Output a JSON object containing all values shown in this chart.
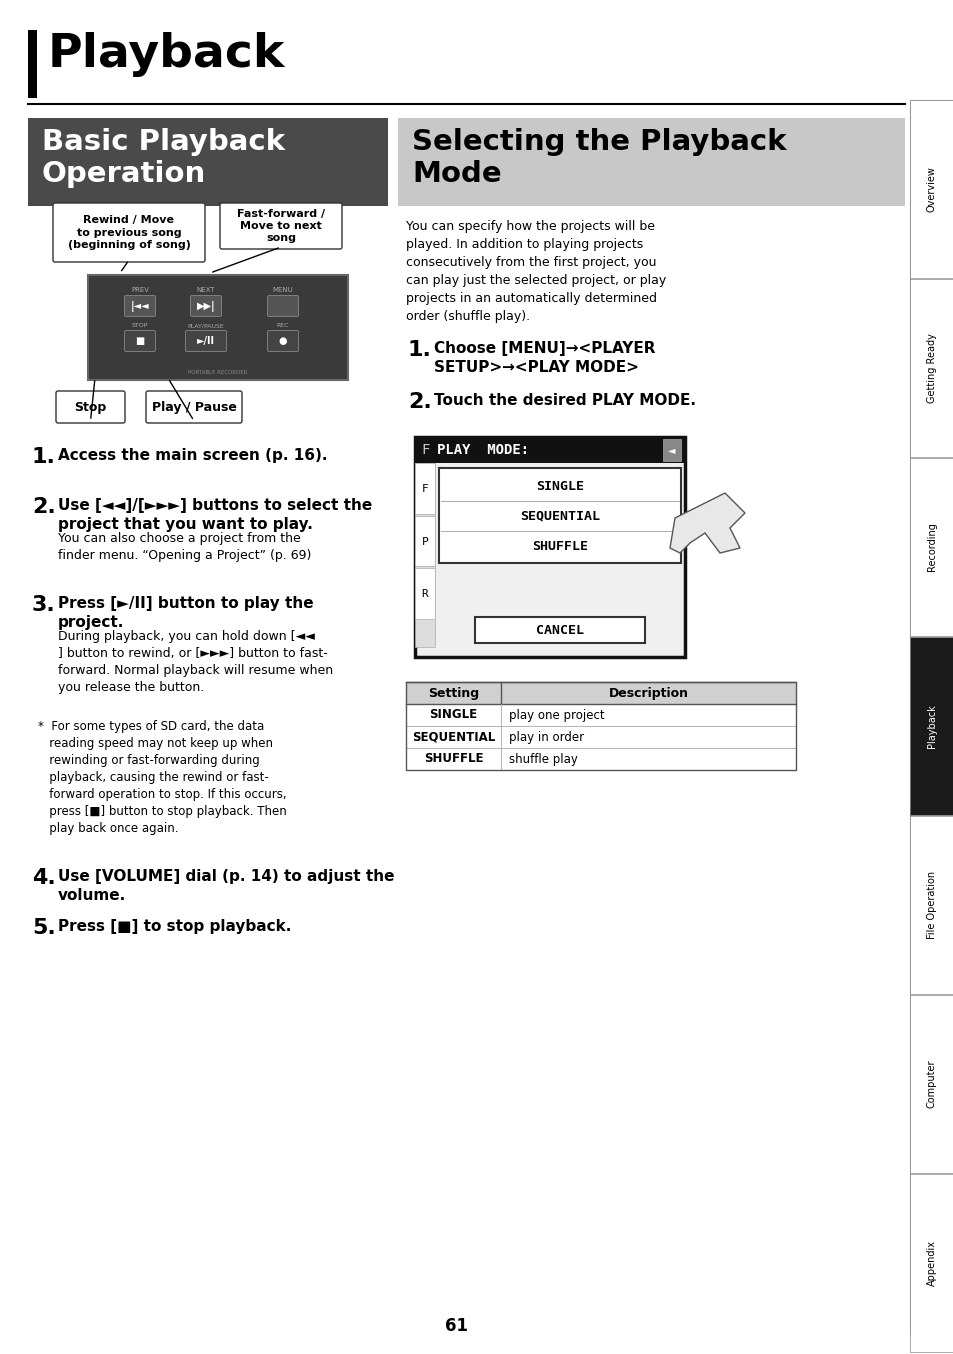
{
  "page_title": "Playback",
  "section1_title": "Basic Playback\nOperation",
  "section2_title": "Selecting the Playback\nMode",
  "section1_bg": "#4a4a4a",
  "section2_bg": "#c8c8c8",
  "body_bg": "#ffffff",
  "tab_labels": [
    "Overview",
    "Getting Ready",
    "Recording",
    "Playback",
    "File Operation",
    "Computer",
    "Appendix"
  ],
  "active_tab_idx": 3,
  "tab_bg_active": "#1a1a1a",
  "tab_bg_inactive": "#ffffff",
  "page_number": "61",
  "callout1_text": "Rewind / Move\nto previous song\n(beginning of song)",
  "callout2_text": "Fast-forward /\nMove to next\nsong",
  "callout3_text": "Stop",
  "callout4_text": "Play / Pause",
  "step1_num": "1.",
  "step1_text": "Access the main screen (p. 16).",
  "step2_num": "2.",
  "step2_text_bold": "Use [◄◄]/[►►►] buttons to select the\nproject that you want to play.",
  "step2_sub": "You can also choose a project from the\nfinder menu. “Opening a Project” (p. 69)",
  "step3_num": "3.",
  "step3_text_bold": "Press [►/II] button to play the\nproject.",
  "step3_sub": "During playback, you can hold down [◄◄\n] button to rewind, or [►►►] button to fast-\nforward. Normal playback will resume when\nyou release the button.",
  "note_text": "*  For some types of SD card, the data\n   reading speed may not keep up when\n   rewinding or fast-forwarding during\n   playback, causing the rewind or fast-\n   forward operation to stop. If this occurs,\n   press [■] button to stop playback. Then\n   play back once again.",
  "step4_num": "4.",
  "step4_text_bold": "Use [VOLUME] dial (p. 14) to adjust the\nvolume.",
  "step5_num": "5.",
  "step5_text_bold": "Press [■] to stop playback.",
  "right_intro": "You can specify how the projects will be\nplayed. In addition to playing projects\nconsecutively from the first project, you\ncan play just the selected project, or play\nprojects in an automatically determined\norder (shuffle play).",
  "right_step1_num": "1.",
  "right_step1_text": "Choose [MENU]→<PLAYER\nSETUP>→<PLAY MODE>",
  "right_step2_num": "2.",
  "right_step2_text": "Touch the desired PLAY MODE.",
  "table_headers": [
    "Setting",
    "Description"
  ],
  "table_rows": [
    [
      "SINGLE",
      "play one project"
    ],
    [
      "SEQUENTIAL",
      "play in order"
    ],
    [
      "SHUFFLE",
      "shuffle play"
    ]
  ],
  "pm_items": [
    "SINGLE",
    "SEQUENTIAL",
    "SHUFFLE"
  ],
  "pm_sidebar": [
    "F",
    "P",
    "R"
  ]
}
